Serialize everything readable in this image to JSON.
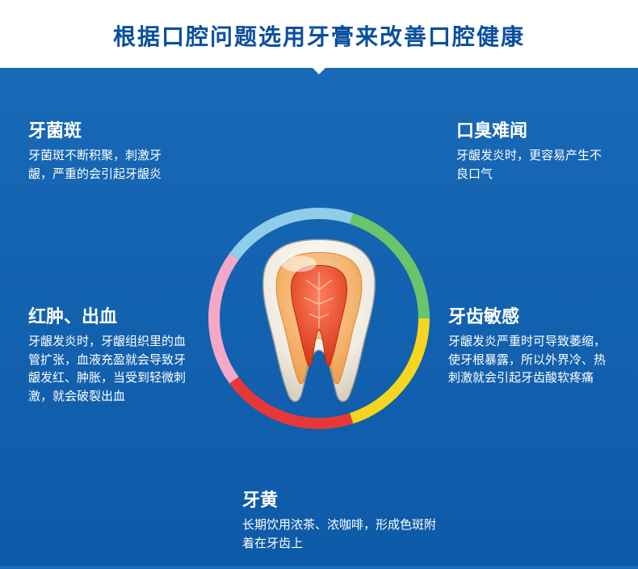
{
  "title": "根据口腔问题选用牙膏来改善口腔健康",
  "title_color": "#0a4f9e",
  "background_gradient": [
    "#1a6bb8",
    "#0d5aa8"
  ],
  "ring": {
    "radius": 130,
    "stroke_width": 14,
    "segments": [
      {
        "color": "#f5a8c5",
        "start": 234,
        "end": 306
      },
      {
        "color": "#8fcde8",
        "start": 306,
        "end": 18
      },
      {
        "color": "#6ac46a",
        "start": 18,
        "end": 90
      },
      {
        "color": "#f5d520",
        "start": 90,
        "end": 162
      },
      {
        "color": "#e63838",
        "start": 162,
        "end": 234
      }
    ]
  },
  "tooth": {
    "enamel_color": "#f5f0e8",
    "dentin_color": "#f8b878",
    "pulp_color": "#e85030",
    "outline_color": "#888"
  },
  "items": {
    "tl": {
      "title": "牙菌斑",
      "desc": "牙菌斑不断积聚，刺激牙龈，严重的会引起牙龈炎"
    },
    "tr": {
      "title": "口臭难闻",
      "desc": "牙龈发炎时，更容易产生不良口气"
    },
    "ml": {
      "title": "红肿、出血",
      "desc": "牙龈发炎时，牙龈组织里的血管扩张，血液充盈就会导致牙龈发红、肿胀，当受到轻微刺激，就会破裂出血"
    },
    "mr": {
      "title": "牙齿敏感",
      "desc": "牙龈发炎严重时可导致萎缩，使牙根暴露，所以外界冷、热刺激就会引起牙齿酸软疼痛"
    },
    "bc": {
      "title": "牙黄",
      "desc": "长期饮用浓茶、浓咖啡，形成色斑附着在牙齿上"
    }
  }
}
